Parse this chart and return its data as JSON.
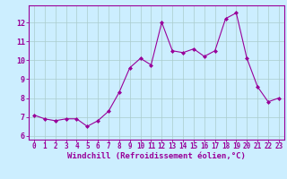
{
  "x": [
    0,
    1,
    2,
    3,
    4,
    5,
    6,
    7,
    8,
    9,
    10,
    11,
    12,
    13,
    14,
    15,
    16,
    17,
    18,
    19,
    20,
    21,
    22,
    23
  ],
  "y": [
    7.1,
    6.9,
    6.8,
    6.9,
    6.9,
    6.5,
    6.8,
    7.3,
    8.3,
    9.6,
    10.1,
    9.75,
    12.0,
    10.5,
    10.4,
    10.6,
    10.2,
    10.5,
    12.2,
    12.5,
    10.1,
    8.6,
    7.8,
    8.0
  ],
  "line_color": "#990099",
  "marker": "D",
  "marker_size": 2.0,
  "bg_color": "#cceeff",
  "grid_color": "#aacccc",
  "xlabel": "Windchill (Refroidissement éolien,°C)",
  "xlim": [
    -0.5,
    23.5
  ],
  "ylim": [
    5.8,
    12.9
  ],
  "yticks": [
    6,
    7,
    8,
    9,
    10,
    11,
    12
  ],
  "xticks": [
    0,
    1,
    2,
    3,
    4,
    5,
    6,
    7,
    8,
    9,
    10,
    11,
    12,
    13,
    14,
    15,
    16,
    17,
    18,
    19,
    20,
    21,
    22,
    23
  ],
  "tick_color": "#990099",
  "label_color": "#990099",
  "tick_fontsize": 5.5,
  "xlabel_fontsize": 6.5,
  "font_family": "monospace"
}
